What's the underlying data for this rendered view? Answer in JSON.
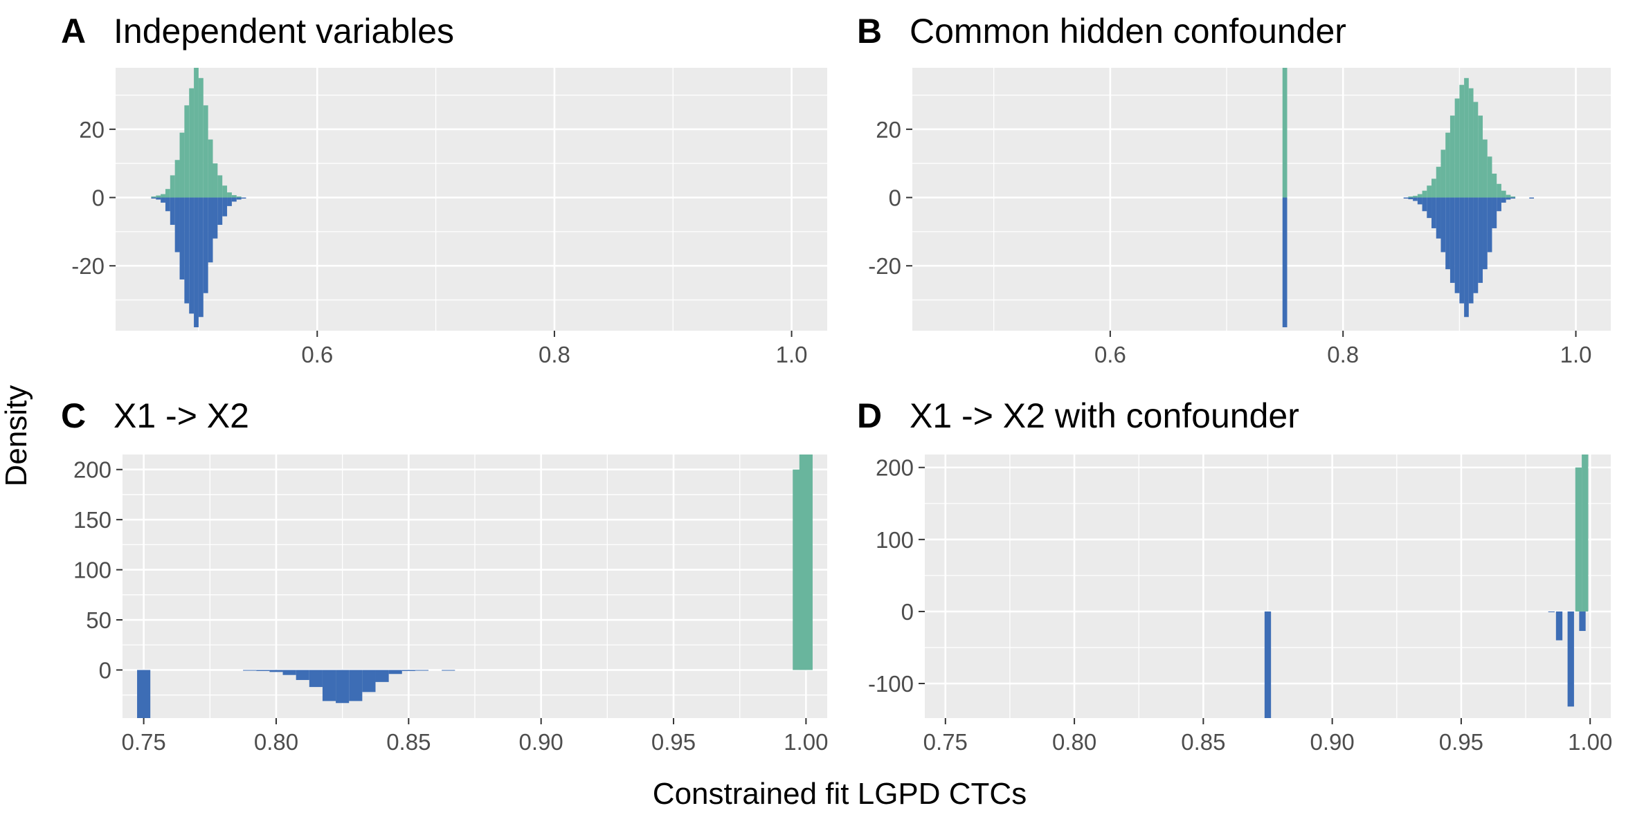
{
  "ylabel": "Density",
  "xlabel": "Constrained fit LGPD CTCs",
  "colors": {
    "upper": "#69b59d",
    "lower": "#3d6db5",
    "panel_bg": "#ebebeb",
    "grid": "#ffffff"
  },
  "chart_data": [
    {
      "type": "histogram",
      "letter": "A",
      "title": "Independent variables",
      "xlim": [
        0.43,
        1.03
      ],
      "ylim": [
        -39,
        38
      ],
      "x_ticks": [
        0.6,
        0.8,
        1.0
      ],
      "x_tick_labels": [
        "0.6",
        "0.8",
        "1.0"
      ],
      "y_ticks": [
        -20,
        0,
        20
      ],
      "y_tick_labels": [
        "-20",
        "0",
        "20"
      ],
      "bin_width": 0.004,
      "series": [
        {
          "side": "upper",
          "bins": [
            {
              "x": 0.462,
              "y": 0.3
            },
            {
              "x": 0.466,
              "y": 0.6
            },
            {
              "x": 0.47,
              "y": 1.0
            },
            {
              "x": 0.474,
              "y": 2.5
            },
            {
              "x": 0.478,
              "y": 6.5
            },
            {
              "x": 0.482,
              "y": 11
            },
            {
              "x": 0.486,
              "y": 19
            },
            {
              "x": 0.49,
              "y": 27
            },
            {
              "x": 0.494,
              "y": 32
            },
            {
              "x": 0.498,
              "y": 38
            },
            {
              "x": 0.502,
              "y": 35
            },
            {
              "x": 0.506,
              "y": 27
            },
            {
              "x": 0.51,
              "y": 17
            },
            {
              "x": 0.514,
              "y": 10
            },
            {
              "x": 0.518,
              "y": 6.5
            },
            {
              "x": 0.522,
              "y": 3.5
            },
            {
              "x": 0.526,
              "y": 1.5
            },
            {
              "x": 0.53,
              "y": 0.7
            },
            {
              "x": 0.534,
              "y": 0.3
            }
          ]
        },
        {
          "side": "lower",
          "bins": [
            {
              "x": 0.462,
              "y": -0.3
            },
            {
              "x": 0.466,
              "y": -0.6
            },
            {
              "x": 0.47,
              "y": -1.5
            },
            {
              "x": 0.474,
              "y": -4
            },
            {
              "x": 0.478,
              "y": -8
            },
            {
              "x": 0.482,
              "y": -16
            },
            {
              "x": 0.486,
              "y": -24
            },
            {
              "x": 0.49,
              "y": -31
            },
            {
              "x": 0.494,
              "y": -34
            },
            {
              "x": 0.498,
              "y": -38
            },
            {
              "x": 0.502,
              "y": -35
            },
            {
              "x": 0.506,
              "y": -28
            },
            {
              "x": 0.51,
              "y": -19
            },
            {
              "x": 0.514,
              "y": -12
            },
            {
              "x": 0.518,
              "y": -8
            },
            {
              "x": 0.522,
              "y": -5.5
            },
            {
              "x": 0.526,
              "y": -2.5
            },
            {
              "x": 0.53,
              "y": -1.2
            },
            {
              "x": 0.534,
              "y": -0.6
            },
            {
              "x": 0.538,
              "y": -0.3
            }
          ]
        }
      ]
    },
    {
      "type": "histogram",
      "letter": "B",
      "title": "Common hidden confounder",
      "xlim": [
        0.43,
        1.03
      ],
      "ylim": [
        -39,
        38
      ],
      "x_ticks": [
        0.6,
        0.8,
        1.0
      ],
      "x_tick_labels": [
        "0.6",
        "0.8",
        "1.0"
      ],
      "y_ticks": [
        -20,
        0,
        20
      ],
      "y_tick_labels": [
        "-20",
        "0",
        "20"
      ],
      "bin_width": 0.004,
      "series": [
        {
          "side": "upper",
          "bins": [
            {
              "x": 0.75,
              "y": 38
            },
            {
              "x": 0.858,
              "y": 0.3
            },
            {
              "x": 0.862,
              "y": 0.5
            },
            {
              "x": 0.866,
              "y": 1.0
            },
            {
              "x": 0.87,
              "y": 2
            },
            {
              "x": 0.874,
              "y": 3.5
            },
            {
              "x": 0.878,
              "y": 5.5
            },
            {
              "x": 0.882,
              "y": 9
            },
            {
              "x": 0.886,
              "y": 14
            },
            {
              "x": 0.89,
              "y": 19
            },
            {
              "x": 0.894,
              "y": 24
            },
            {
              "x": 0.898,
              "y": 29
            },
            {
              "x": 0.902,
              "y": 33
            },
            {
              "x": 0.906,
              "y": 35
            },
            {
              "x": 0.91,
              "y": 32
            },
            {
              "x": 0.914,
              "y": 28
            },
            {
              "x": 0.918,
              "y": 24
            },
            {
              "x": 0.922,
              "y": 17
            },
            {
              "x": 0.926,
              "y": 12
            },
            {
              "x": 0.93,
              "y": 7
            },
            {
              "x": 0.934,
              "y": 4
            },
            {
              "x": 0.938,
              "y": 2
            },
            {
              "x": 0.942,
              "y": 0.8
            },
            {
              "x": 0.946,
              "y": 0.3
            }
          ]
        },
        {
          "side": "lower",
          "bins": [
            {
              "x": 0.75,
              "y": -38
            },
            {
              "x": 0.854,
              "y": -0.3
            },
            {
              "x": 0.858,
              "y": -0.5
            },
            {
              "x": 0.862,
              "y": -1.0
            },
            {
              "x": 0.866,
              "y": -2
            },
            {
              "x": 0.87,
              "y": -4
            },
            {
              "x": 0.874,
              "y": -6
            },
            {
              "x": 0.878,
              "y": -9
            },
            {
              "x": 0.882,
              "y": -12
            },
            {
              "x": 0.886,
              "y": -16
            },
            {
              "x": 0.89,
              "y": -21
            },
            {
              "x": 0.894,
              "y": -25
            },
            {
              "x": 0.898,
              "y": -28
            },
            {
              "x": 0.902,
              "y": -31
            },
            {
              "x": 0.906,
              "y": -35
            },
            {
              "x": 0.91,
              "y": -31
            },
            {
              "x": 0.914,
              "y": -28
            },
            {
              "x": 0.918,
              "y": -25
            },
            {
              "x": 0.922,
              "y": -21
            },
            {
              "x": 0.926,
              "y": -16
            },
            {
              "x": 0.93,
              "y": -9
            },
            {
              "x": 0.934,
              "y": -4
            },
            {
              "x": 0.938,
              "y": -1.5
            },
            {
              "x": 0.942,
              "y": -0.6
            },
            {
              "x": 0.946,
              "y": -0.3
            },
            {
              "x": 0.962,
              "y": -0.3
            }
          ]
        }
      ]
    },
    {
      "type": "histogram",
      "letter": "C",
      "title": "X1 -> X2",
      "xlim": [
        0.742,
        1.008
      ],
      "ylim": [
        -48,
        215
      ],
      "x_ticks": [
        0.75,
        0.8,
        0.85,
        0.9,
        0.95,
        1.0
      ],
      "x_tick_labels": [
        "0.75",
        "0.80",
        "0.85",
        "0.90",
        "0.95",
        "1.00"
      ],
      "y_ticks": [
        0,
        50,
        100,
        150,
        200
      ],
      "y_tick_labels": [
        "0",
        "50",
        "100",
        "150",
        "200"
      ],
      "bin_width": 0.005,
      "series": [
        {
          "side": "upper",
          "bins": [
            {
              "x": 0.9975,
              "y": 200
            },
            {
              "x": 1.0,
              "y": 215
            }
          ]
        },
        {
          "side": "lower",
          "bins": [
            {
              "x": 0.75,
              "y": -48
            },
            {
              "x": 0.79,
              "y": -0.5
            },
            {
              "x": 0.795,
              "y": -1
            },
            {
              "x": 0.8,
              "y": -2
            },
            {
              "x": 0.805,
              "y": -5
            },
            {
              "x": 0.81,
              "y": -10
            },
            {
              "x": 0.815,
              "y": -17
            },
            {
              "x": 0.82,
              "y": -31
            },
            {
              "x": 0.825,
              "y": -33
            },
            {
              "x": 0.83,
              "y": -31
            },
            {
              "x": 0.835,
              "y": -22
            },
            {
              "x": 0.84,
              "y": -12
            },
            {
              "x": 0.845,
              "y": -4
            },
            {
              "x": 0.85,
              "y": -1
            },
            {
              "x": 0.855,
              "y": -0.5
            },
            {
              "x": 0.865,
              "y": -0.5
            }
          ]
        }
      ]
    },
    {
      "type": "histogram",
      "letter": "D",
      "title": "X1 -> X2 with confounder",
      "xlim": [
        0.742,
        1.008
      ],
      "ylim": [
        -148,
        218
      ],
      "x_ticks": [
        0.75,
        0.8,
        0.85,
        0.9,
        0.95,
        1.0
      ],
      "x_tick_labels": [
        "0.75",
        "0.80",
        "0.85",
        "0.90",
        "0.95",
        "1.00"
      ],
      "y_ticks": [
        -100,
        0,
        100,
        200
      ],
      "y_tick_labels": [
        "-100",
        "0",
        "100",
        "200"
      ],
      "bin_width": 0.0025,
      "series": [
        {
          "side": "upper",
          "bins": [
            {
              "x": 0.9955,
              "y": 200
            },
            {
              "x": 0.998,
              "y": 218
            }
          ]
        },
        {
          "side": "lower",
          "bins": [
            {
              "x": 0.875,
              "y": -148
            },
            {
              "x": 0.985,
              "y": -1
            },
            {
              "x": 0.988,
              "y": -40
            },
            {
              "x": 0.9925,
              "y": -132
            },
            {
              "x": 0.997,
              "y": -27
            }
          ]
        }
      ]
    }
  ]
}
